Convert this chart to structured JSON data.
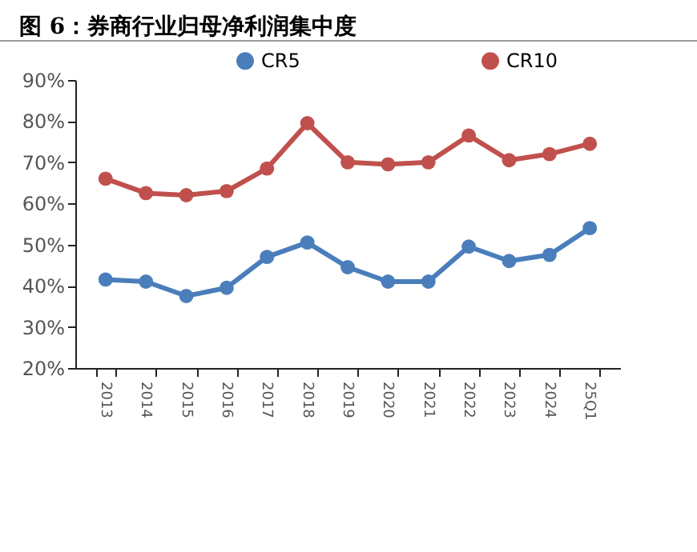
{
  "chart_data": {
    "type": "line",
    "title": "图 6：券商行业归母净利润集中度",
    "categories": [
      "2013",
      "2014",
      "2015",
      "2016",
      "2017",
      "2018",
      "2019",
      "2020",
      "2021",
      "2022",
      "2023",
      "2024",
      "25Q1"
    ],
    "series": [
      {
        "name": "CR5",
        "color": "#4a7ebb",
        "values": [
          41.5,
          41,
          37.5,
          39.5,
          47,
          50.5,
          44.5,
          41,
          41,
          49.5,
          46,
          47.5,
          54
        ]
      },
      {
        "name": "CR10",
        "color": "#c0504d",
        "values": [
          66,
          62.5,
          62,
          63,
          68.5,
          79.5,
          70,
          69.5,
          70,
          76.5,
          70.5,
          72,
          74.5
        ]
      }
    ],
    "ylim": [
      20,
      90
    ],
    "yticks": [
      {
        "value": 20,
        "label": "20%"
      },
      {
        "value": 30,
        "label": "30%"
      },
      {
        "value": 40,
        "label": "40%"
      },
      {
        "value": 50,
        "label": "50%"
      },
      {
        "value": 60,
        "label": "60%"
      },
      {
        "value": 70,
        "label": "70%"
      },
      {
        "value": 80,
        "label": "80%"
      },
      {
        "value": 90,
        "label": "90%"
      }
    ],
    "grid": false,
    "legend": "top",
    "marker": "circle",
    "line_style": "solid"
  }
}
